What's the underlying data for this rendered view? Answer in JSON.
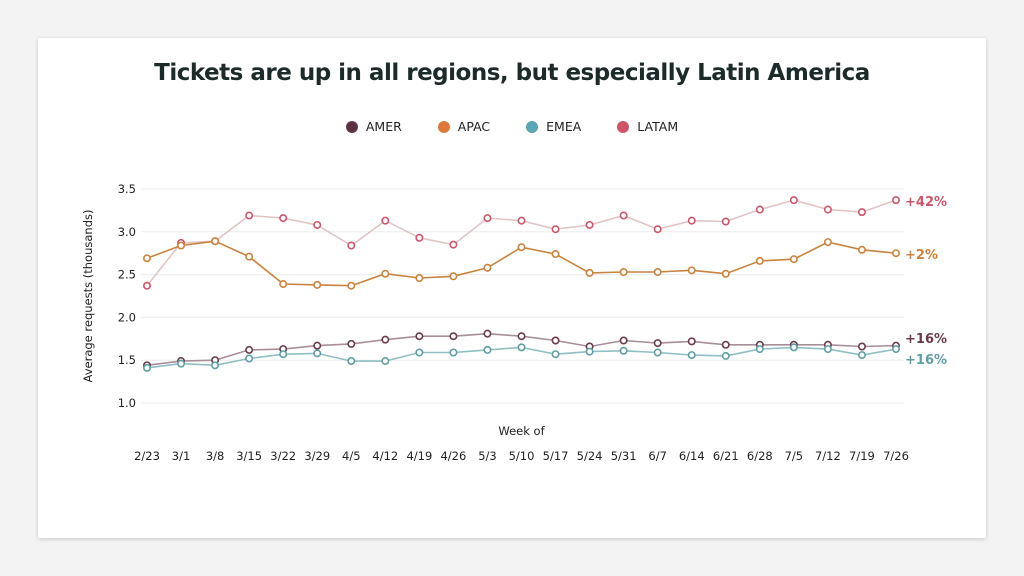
{
  "colors": {
    "AMER": "#6b3a4b",
    "APAC": "#c9833e",
    "EMEA": "#5f9ea6",
    "LATAM": "#c9566b",
    "AMER_line": "#a88d9a",
    "APAC_line": "#c9833e",
    "EMEA_line": "#8fbfc4",
    "LATAM_line": "#e2c4c4",
    "AMER_legend": "#5a3042",
    "APAC_legend": "#e0773a",
    "EMEA_legend": "#5aa7b5",
    "LATAM_legend": "#cc5568"
  },
  "chart_data": {
    "type": "line",
    "title": "Tickets are up in all regions, but especially Latin America",
    "xlabel": "Week of",
    "ylabel": "Average requests (thousands)",
    "ylim": [
      1.0,
      3.5
    ],
    "yticks": [
      "1.0",
      "1.5",
      "2.0",
      "2.5",
      "3.0",
      "3.5"
    ],
    "grid": true,
    "legend": "top-center",
    "categories": [
      "2/23",
      "3/1",
      "3/8",
      "3/15",
      "3/22",
      "3/29",
      "4/5",
      "4/12",
      "4/19",
      "4/26",
      "5/3",
      "5/10",
      "5/17",
      "5/24",
      "5/31",
      "6/7",
      "6/14",
      "6/21",
      "6/28",
      "7/5",
      "7/12",
      "7/19",
      "7/26"
    ],
    "series": [
      {
        "name": "AMER",
        "end_label": "+16%",
        "values": [
          1.44,
          1.49,
          1.5,
          1.62,
          1.63,
          1.67,
          1.69,
          1.74,
          1.78,
          1.78,
          1.81,
          1.78,
          1.73,
          1.66,
          1.73,
          1.7,
          1.72,
          1.68,
          1.68,
          1.68,
          1.68,
          1.66,
          1.67
        ]
      },
      {
        "name": "APAC",
        "end_label": "+2%",
        "values": [
          2.69,
          2.84,
          2.89,
          2.71,
          2.39,
          2.38,
          2.37,
          2.51,
          2.46,
          2.48,
          2.58,
          2.82,
          2.74,
          2.52,
          2.53,
          2.53,
          2.55,
          2.51,
          2.66,
          2.68,
          2.88,
          2.79,
          2.75
        ]
      },
      {
        "name": "EMEA",
        "end_label": "+16%",
        "values": [
          1.41,
          1.46,
          1.44,
          1.52,
          1.57,
          1.58,
          1.49,
          1.49,
          1.59,
          1.59,
          1.62,
          1.65,
          1.57,
          1.6,
          1.61,
          1.59,
          1.56,
          1.55,
          1.63,
          1.65,
          1.63,
          1.56,
          1.63
        ]
      },
      {
        "name": "LATAM",
        "end_label": "+42%",
        "values": [
          2.37,
          2.87,
          2.89,
          3.19,
          3.16,
          3.08,
          2.84,
          3.13,
          2.93,
          2.85,
          3.16,
          3.13,
          3.03,
          3.08,
          3.19,
          3.03,
          3.13,
          3.12,
          3.26,
          3.37,
          3.26,
          3.23,
          3.37
        ]
      }
    ]
  }
}
